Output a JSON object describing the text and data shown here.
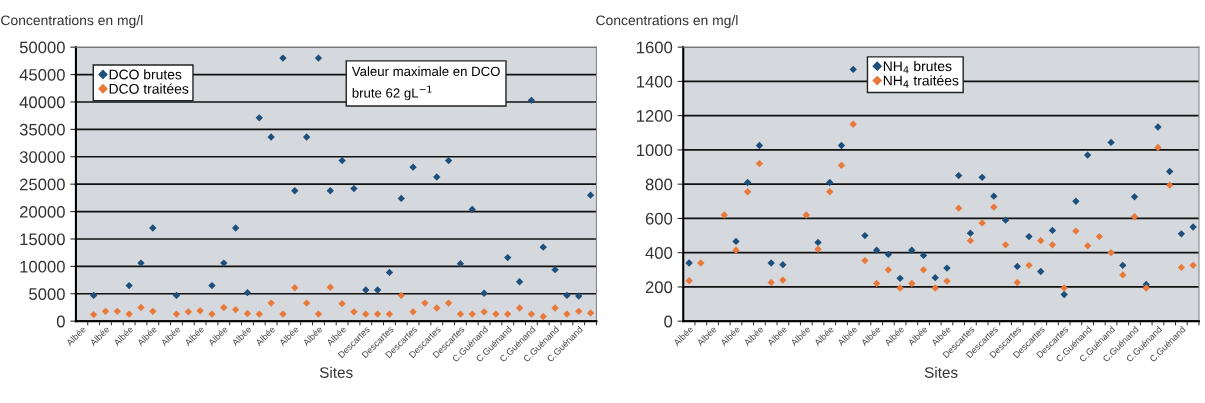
{
  "chart_data": [
    {
      "type": "scatter",
      "ylabel": "Concentrations en mg/l",
      "xlabel": "Sites",
      "categories": [
        "Albée",
        null,
        "Albée",
        null,
        "Albée",
        null,
        "Albée",
        null,
        "Albée",
        null,
        "Albée",
        null,
        "Albée",
        null,
        "Albée",
        null,
        "Albée",
        null,
        "Albée",
        null,
        "Albée",
        null,
        "Albée",
        null,
        "Descartes",
        null,
        "Descartes",
        null,
        "Descartes",
        null,
        "Descartes",
        null,
        "Descartes",
        null,
        "C.Guénand",
        null,
        "C.Guénand",
        null,
        "C.Guénand",
        null,
        "C.Guénand",
        null,
        "C.Guénand",
        null
      ],
      "series": [
        {
          "name": "DCO brutes",
          "color": "#1d4f7c",
          "values": [
            null,
            4700,
            null,
            null,
            6500,
            10600,
            17000,
            null,
            4700,
            null,
            null,
            6500,
            10600,
            17000,
            5200,
            37100,
            33600,
            48000,
            23800,
            33600,
            48000,
            23800,
            29300,
            24200,
            5700,
            5700,
            8900,
            22400,
            28100,
            null,
            26300,
            29300,
            10500,
            20400,
            5100,
            null,
            11600,
            7200,
            40300,
            13500,
            9400,
            4700,
            4600,
            23000
          ]
        },
        {
          "name": "DCO traitées",
          "color": "#e8793a",
          "values": [
            null,
            1200,
            1800,
            1800,
            1300,
            2500,
            1800,
            null,
            1300,
            1700,
            1900,
            1300,
            2500,
            2100,
            1400,
            1300,
            3300,
            1300,
            6100,
            3300,
            1300,
            6200,
            3200,
            1700,
            1300,
            1300,
            1300,
            4700,
            1700,
            3300,
            2400,
            3300,
            1300,
            1300,
            1700,
            1300,
            1300,
            2400,
            1300,
            850,
            2400,
            1300,
            1800,
            1500
          ]
        }
      ],
      "ylim": [
        0,
        50000
      ],
      "yticks": [
        0,
        5000,
        10000,
        15000,
        20000,
        25000,
        30000,
        35000,
        40000,
        45000,
        50000
      ],
      "grid": "y",
      "legend": "top left",
      "marker": "diamond",
      "annotations": [
        "Valeur maximale en DCO brute 62 gL$^{−1}$"
      ]
    },
    {
      "type": "scatter",
      "ylabel": "Concentrations en mg/l",
      "xlabel": "Sites",
      "categories": [
        "Albée",
        null,
        "Albée",
        null,
        "Albée",
        null,
        "Albée",
        null,
        "Albée",
        null,
        "Albée",
        null,
        "Albée",
        null,
        "Albée",
        null,
        "Albée",
        null,
        "Albée",
        null,
        "Albée",
        null,
        "Albée",
        null,
        "Descartes",
        null,
        "Descartes",
        null,
        "Descartes",
        null,
        "Descartes",
        null,
        "Descartes",
        null,
        "C.Guénand",
        null,
        "C.Guénand",
        null,
        "C.Guénand",
        null,
        "C.Guénand",
        null,
        "C.Guénand",
        null
      ],
      "series": [
        {
          "name": "NH$_{4}$ brutes",
          "color": "#1d4f7c",
          "values": [
            340,
            null,
            null,
            null,
            466,
            810,
            1026,
            340,
            330,
            null,
            null,
            460,
            810,
            1026,
            1470,
            500,
            414,
            390,
            250,
            414,
            384,
            254,
            310,
            850,
            514,
            840,
            730,
            590,
            320,
            494,
            290,
            530,
            156,
            700,
            970,
            null,
            1044,
            326,
            726,
            214,
            1134,
            874,
            510,
            550
          ]
        },
        {
          "name": "NH$_{4}$ traitées",
          "color": "#e8793a",
          "values": [
            236,
            340,
            null,
            620,
            414,
            756,
            920,
            226,
            240,
            null,
            620,
            420,
            756,
            910,
            1150,
            354,
            220,
            300,
            194,
            220,
            300,
            194,
            234,
            660,
            470,
            574,
            666,
            446,
            226,
            326,
            470,
            446,
            194,
            526,
            440,
            494,
            400,
            270,
            610,
            194,
            1014,
            794,
            314,
            326
          ]
        }
      ],
      "ylim": [
        0,
        1600
      ],
      "yticks": [
        0,
        200,
        400,
        600,
        800,
        1000,
        1200,
        1400,
        1600
      ],
      "grid": "y",
      "legend": "top",
      "marker": "diamond"
    }
  ]
}
